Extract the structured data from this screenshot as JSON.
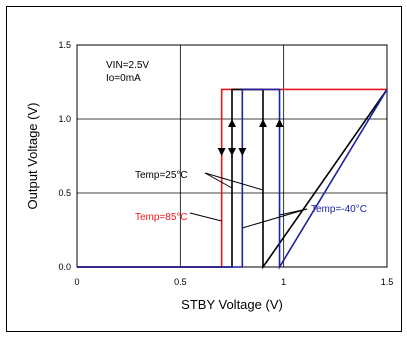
{
  "chart_data": {
    "type": "line",
    "title": "",
    "xlabel": "STBY Voltage (V)",
    "ylabel": "Output Voltage (V)",
    "xlim": [
      0,
      1.5
    ],
    "ylim": [
      0,
      1.5
    ],
    "xticks": [
      "0",
      "0.5",
      "1",
      "1.5"
    ],
    "yticks": [
      "0.0",
      "0.5",
      "1.0",
      "1.5"
    ],
    "grid": true,
    "conditions": [
      "VIN=2.5V",
      "Io=0mA"
    ],
    "series": [
      {
        "name": "Temp=85°C",
        "color": "#e8191c",
        "x": [
          0,
          0.7,
          0.7,
          1.5
        ],
        "y": [
          0,
          0,
          1.2,
          1.2
        ]
      },
      {
        "name": "Temp=25°C",
        "color": "#000000",
        "x": [
          0,
          0.75,
          0.75,
          0.9,
          0.9,
          1.5
        ],
        "y": [
          0,
          0,
          1.2,
          1.2,
          0,
          1.2
        ]
      },
      {
        "name": "Temp=-40°C",
        "color": "#1f22a0",
        "x": [
          0,
          0.8,
          0.8,
          0.98,
          0.98,
          1.5
        ],
        "y": [
          0,
          0,
          1.2,
          1.2,
          0,
          1.2
        ]
      }
    ],
    "annotations": [
      {
        "text": "Temp=25°C",
        "color": "#000000"
      },
      {
        "text": "Temp=85°C",
        "color": "#e8191c"
      },
      {
        "text": "Temp=-40°C",
        "color": "#1f22a0"
      }
    ]
  }
}
